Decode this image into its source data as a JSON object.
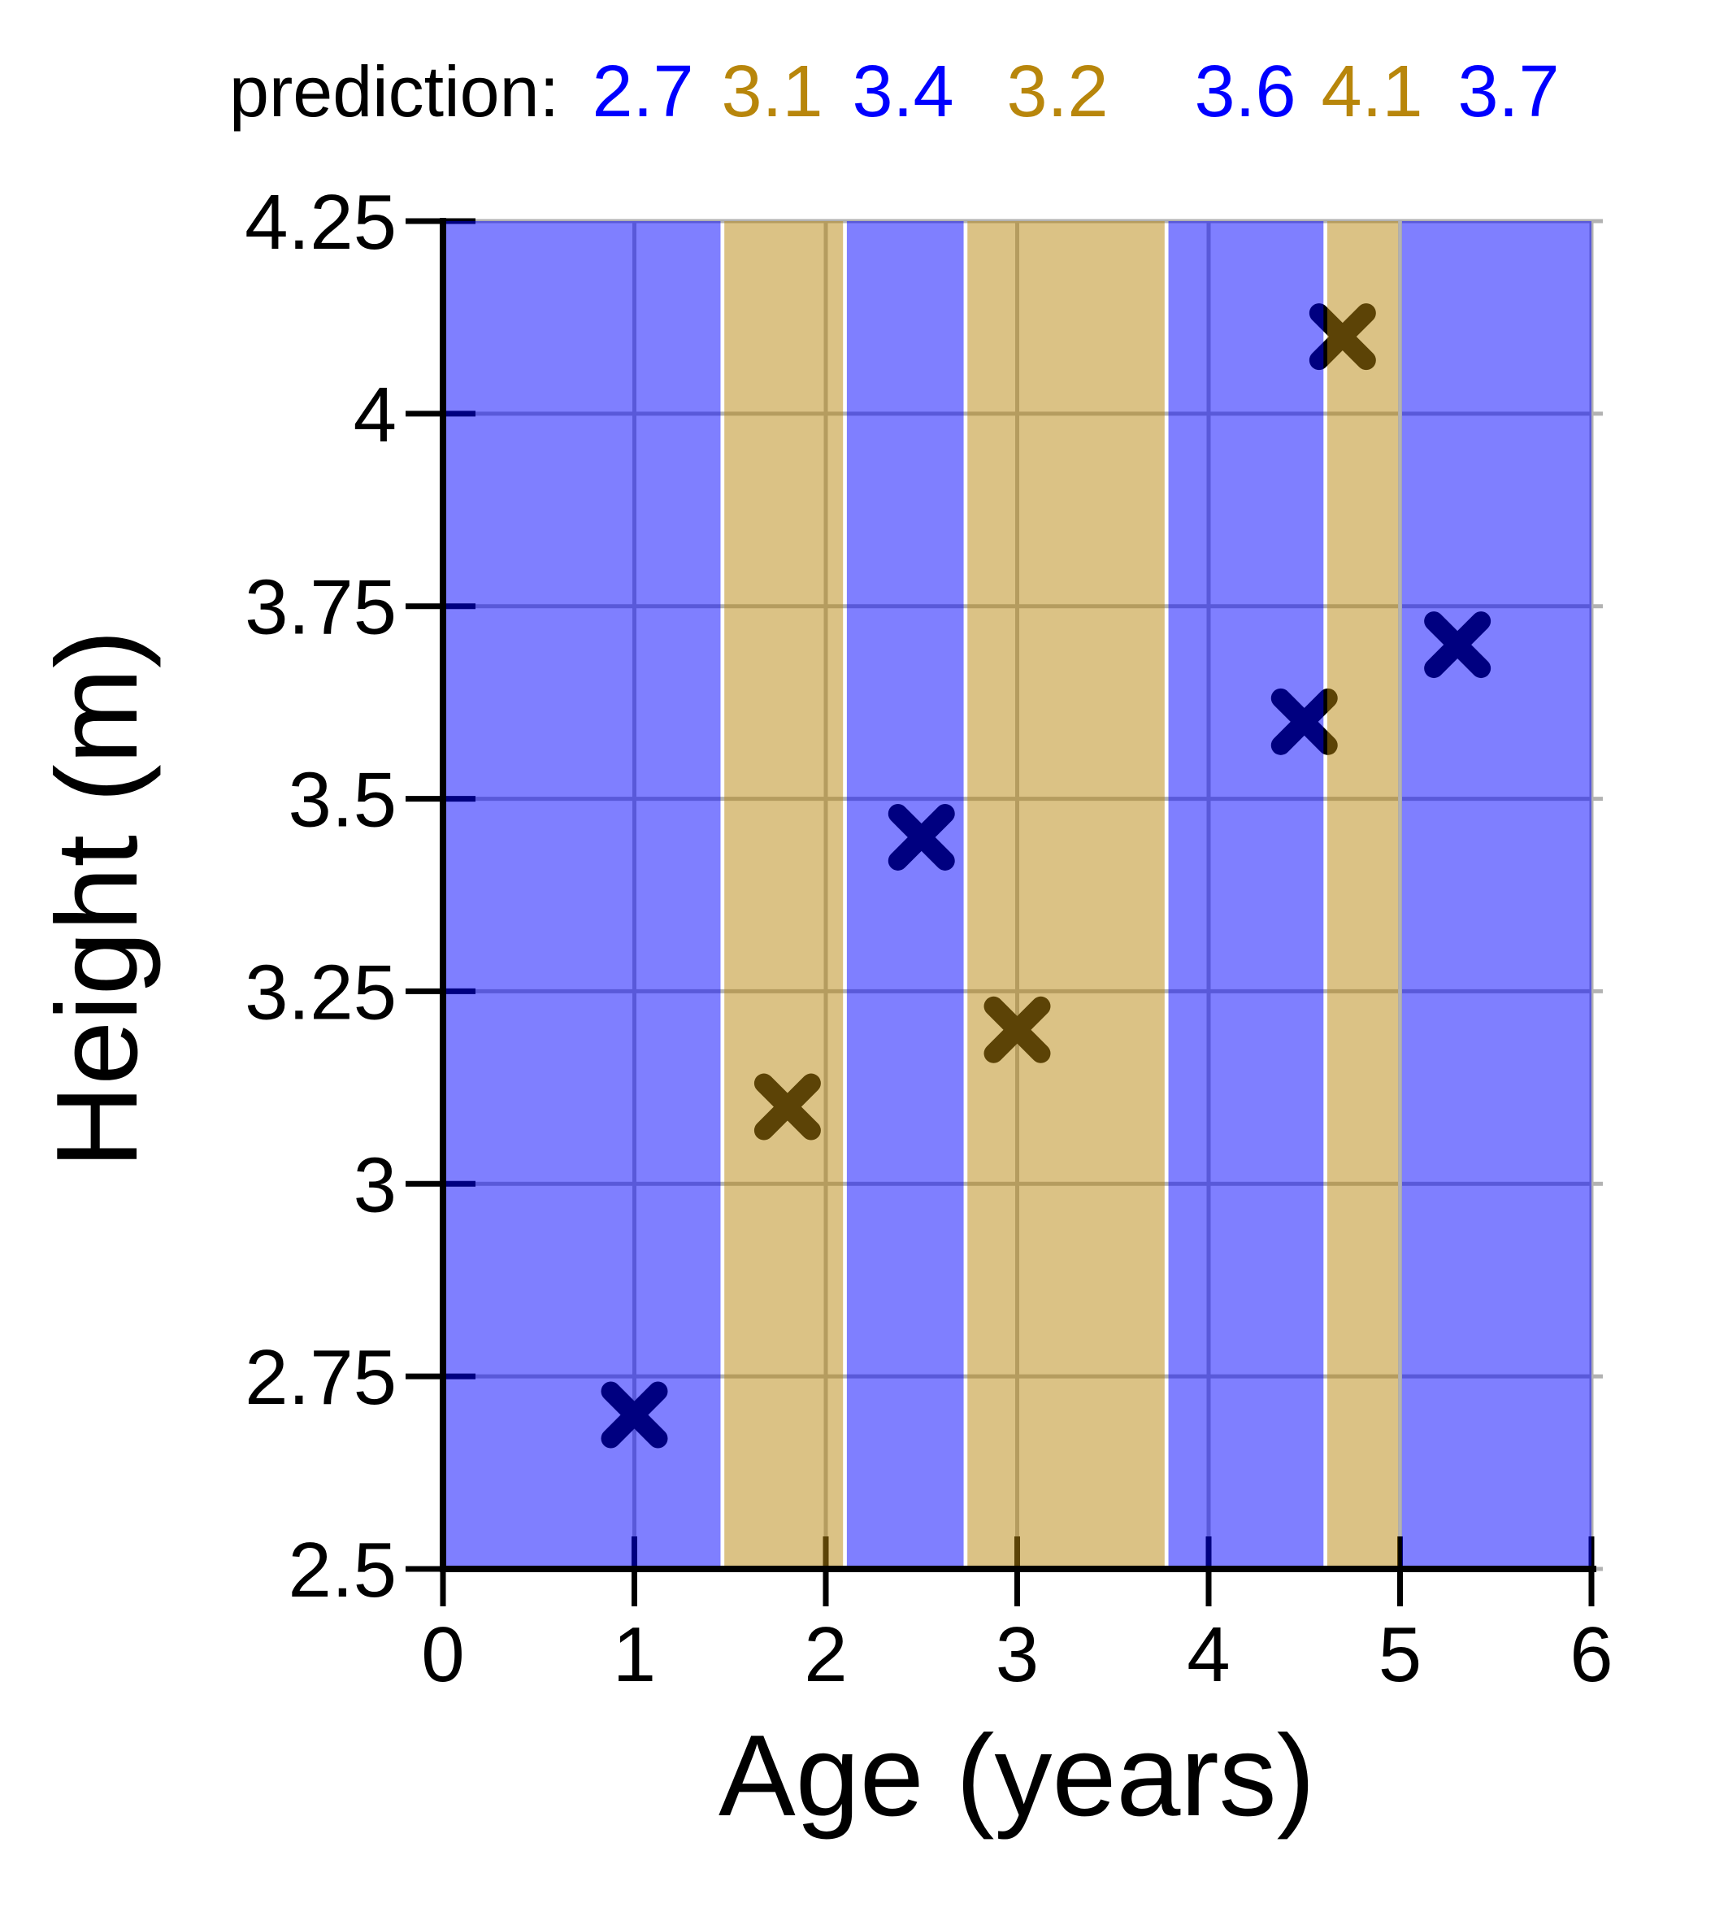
{
  "header": {
    "prefix_label": "prediction:",
    "predictions": [
      {
        "value": "2.7",
        "band": "blue"
      },
      {
        "value": "3.1",
        "band": "tan"
      },
      {
        "value": "3.4",
        "band": "blue"
      },
      {
        "value": "3.2",
        "band": "tan"
      },
      {
        "value": "3.6",
        "band": "blue"
      },
      {
        "value": "4.1",
        "band": "tan"
      },
      {
        "value": "3.7",
        "band": "blue"
      }
    ],
    "label_x_centers": [
      791,
      950,
      1111,
      1301,
      1532,
      1688,
      1856
    ]
  },
  "colors": {
    "prediction_text_blue": "#0000ff",
    "prediction_text_tan": "#b8860b",
    "band_blue": "rgba(0,0,255,0.5)",
    "band_tan": "rgba(184,134,11,0.5)",
    "gridline": "#b2b2b2",
    "axis": "#000000",
    "marker": "#000000",
    "text": "#000000",
    "background": "#ffffff"
  },
  "chart_data": {
    "type": "scatter",
    "title": "",
    "xlabel": "Age (years)",
    "ylabel": "Height (m)",
    "xlim": [
      0,
      6.06
    ],
    "ylim": [
      2.5,
      4.25
    ],
    "xticks": [
      0,
      1,
      2,
      3,
      4,
      5,
      6
    ],
    "xtick_labels": [
      "0",
      "1",
      "2",
      "3",
      "4",
      "5",
      "6"
    ],
    "yticks": [
      2.5,
      2.75,
      3,
      3.25,
      3.5,
      3.75,
      4,
      4.25
    ],
    "ytick_labels": [
      "2.5",
      "2.75",
      "3",
      "3.25",
      "3.5",
      "3.75",
      "4",
      "4.25"
    ],
    "grid": true,
    "legend": false,
    "marker": "X",
    "points": [
      {
        "x": 1.0,
        "y": 2.7,
        "prediction": 2.7,
        "band": "blue"
      },
      {
        "x": 1.8,
        "y": 3.1,
        "prediction": 3.1,
        "band": "tan"
      },
      {
        "x": 2.5,
        "y": 3.45,
        "prediction": 3.4,
        "band": "blue"
      },
      {
        "x": 3.0,
        "y": 3.2,
        "prediction": 3.2,
        "band": "tan"
      },
      {
        "x": 4.5,
        "y": 3.6,
        "prediction": 3.6,
        "band": "blue"
      },
      {
        "x": 4.7,
        "y": 4.1,
        "prediction": 4.1,
        "band": "tan"
      },
      {
        "x": 5.3,
        "y": 3.7,
        "prediction": 3.7,
        "band": "blue"
      }
    ],
    "bands": [
      {
        "x0": 0.0,
        "x1": 1.45,
        "color": "blue"
      },
      {
        "x0": 1.47,
        "x1": 2.09,
        "color": "tan"
      },
      {
        "x0": 2.11,
        "x1": 2.72,
        "color": "blue"
      },
      {
        "x0": 2.74,
        "x1": 3.77,
        "color": "tan"
      },
      {
        "x0": 3.79,
        "x1": 4.6,
        "color": "blue"
      },
      {
        "x0": 4.62,
        "x1": 4.99,
        "color": "tan"
      },
      {
        "x0": 5.01,
        "x1": 6.0,
        "color": "blue"
      }
    ]
  }
}
